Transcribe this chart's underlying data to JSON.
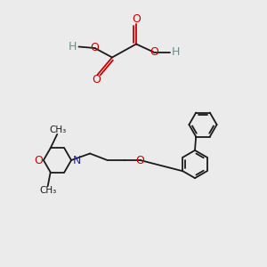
{
  "background_color": "#ebebeb",
  "bond_color": "#1a1a1a",
  "oxygen_color": "#cc0000",
  "nitrogen_color": "#2222cc",
  "hydrogen_color": "#6b8e8e",
  "line_width": 1.3,
  "figsize": [
    3.0,
    3.0
  ],
  "dpi": 100,
  "xlim": [
    0,
    10
  ],
  "ylim": [
    0,
    10
  ]
}
